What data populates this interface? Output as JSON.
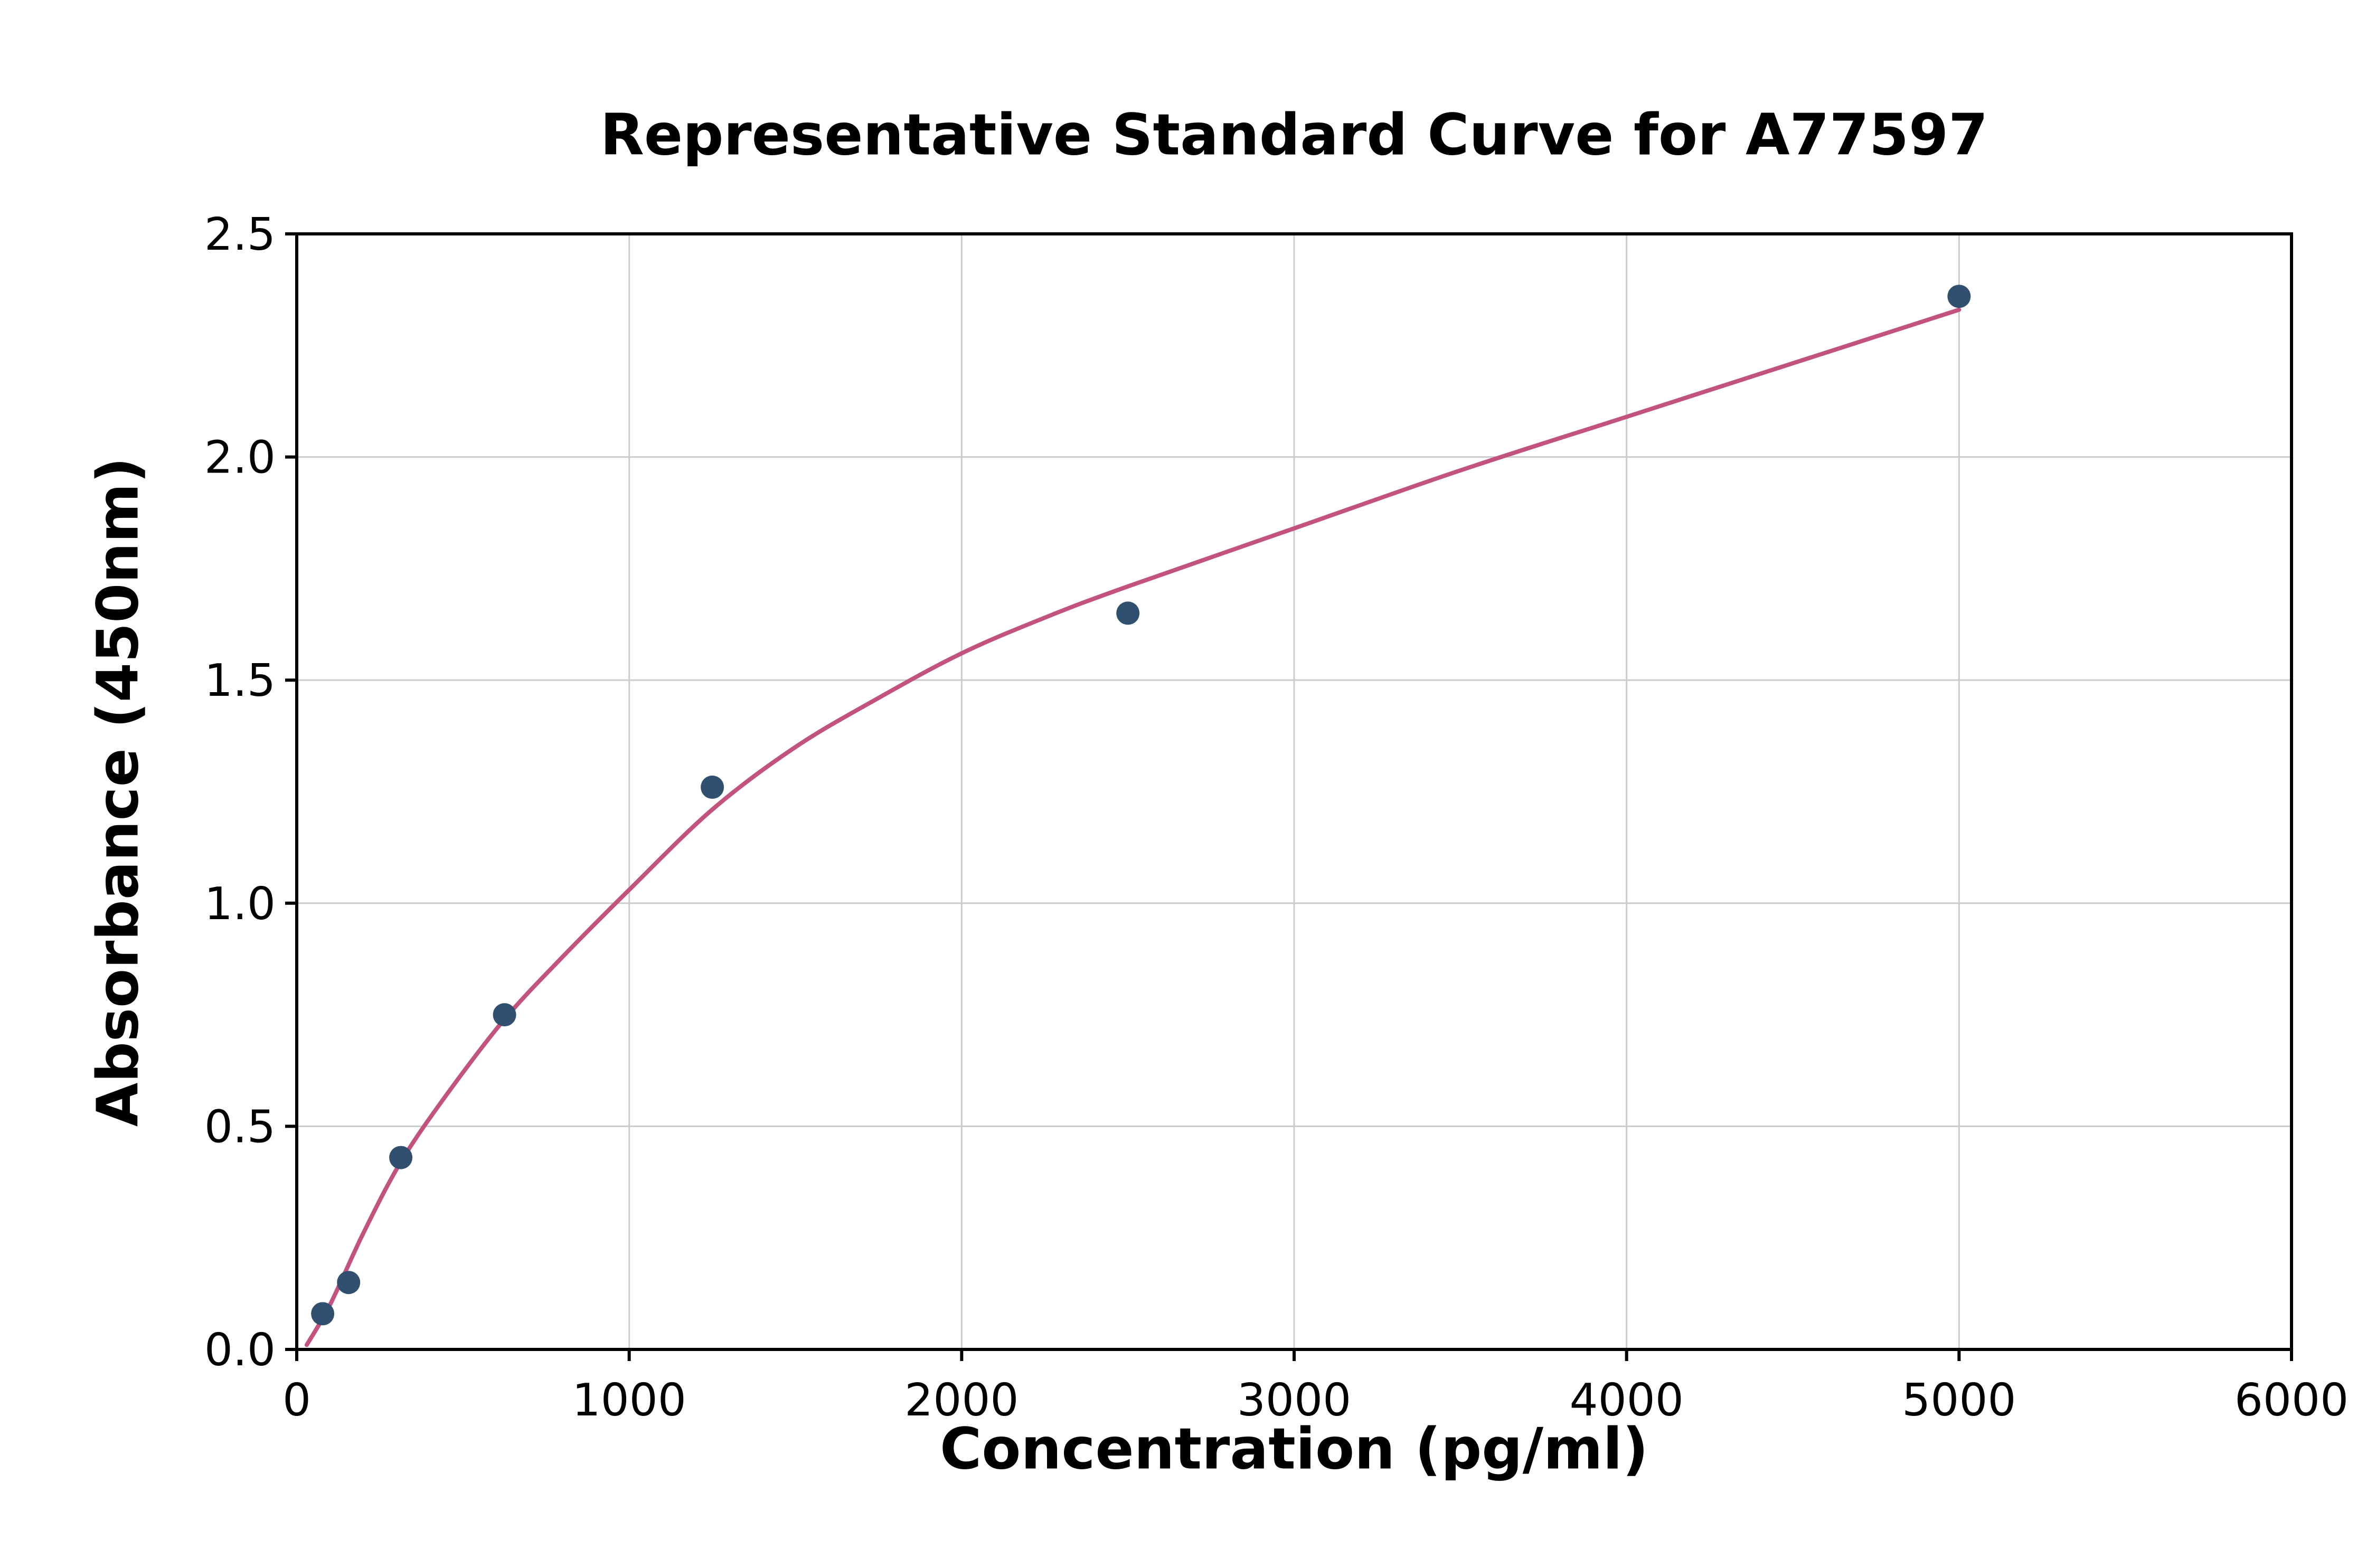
{
  "chart_data": {
    "type": "scatter",
    "title": "Representative Standard Curve for A77597",
    "xlabel": "Concentration (pg/ml)",
    "ylabel": "Absorbance (450nm)",
    "xlim": [
      0,
      6000
    ],
    "ylim": [
      0,
      2.5
    ],
    "x_ticks": [
      0,
      1000,
      2000,
      3000,
      4000,
      5000,
      6000
    ],
    "x_tick_labels": [
      "0",
      "1000",
      "2000",
      "3000",
      "4000",
      "5000",
      "6000"
    ],
    "y_ticks": [
      0,
      0.5,
      1.0,
      1.5,
      2.0,
      2.5
    ],
    "y_tick_labels": [
      "0.0",
      "0.5",
      "1.0",
      "1.5",
      "2.0",
      "2.5"
    ],
    "grid": true,
    "legend": "none",
    "series": [
      {
        "name": "standard-points",
        "type": "scatter",
        "x": [
          78,
          156,
          313,
          625,
          1250,
          2500,
          5000
        ],
        "y": [
          0.08,
          0.15,
          0.43,
          0.75,
          1.26,
          1.65,
          2.36
        ],
        "color": "#31506f",
        "marker_radius": 22
      },
      {
        "name": "fitted-curve",
        "type": "line",
        "points": [
          [
            30,
            0.01
          ],
          [
            100,
            0.1
          ],
          [
            200,
            0.26
          ],
          [
            313,
            0.42
          ],
          [
            450,
            0.57
          ],
          [
            625,
            0.74
          ],
          [
            800,
            0.88
          ],
          [
            1000,
            1.03
          ],
          [
            1250,
            1.21
          ],
          [
            1500,
            1.35
          ],
          [
            1750,
            1.46
          ],
          [
            2000,
            1.56
          ],
          [
            2250,
            1.64
          ],
          [
            2500,
            1.71
          ],
          [
            3000,
            1.84
          ],
          [
            3500,
            1.97
          ],
          [
            4000,
            2.09
          ],
          [
            4500,
            2.21
          ],
          [
            5000,
            2.33
          ]
        ],
        "color": "#c2527e",
        "stroke_width": 8
      }
    ],
    "colors": {
      "grid": "#cccccc",
      "axis": "#000000",
      "background": "#ffffff",
      "point": "#31506f",
      "curve": "#c2527e"
    }
  }
}
